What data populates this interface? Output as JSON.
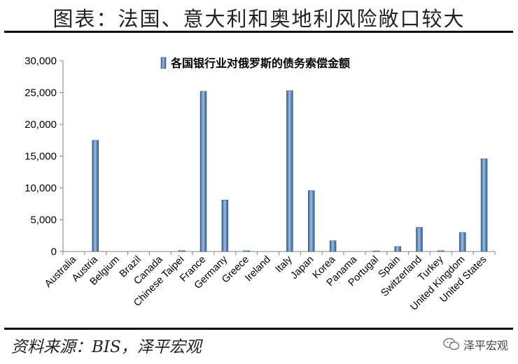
{
  "header": {
    "title": "图表：法国、意大利和奥地利风险敞口较大"
  },
  "footer": {
    "source": "资料来源：BIS，泽平宏观",
    "watermark": "泽平宏观"
  },
  "colors": {
    "bar": "#4f81bd",
    "bar_dark": "#2c5a8c",
    "bar_light": "#9dbde2",
    "axis": "#808080"
  },
  "chart_data": {
    "type": "bar",
    "title": "",
    "xlabel": "",
    "ylabel": "",
    "legend": {
      "position": "top-center",
      "label": "各国银行业对俄罗斯的债务索偿金额"
    },
    "ylim": [
      0,
      30000
    ],
    "yticks": [
      0,
      5000,
      10000,
      15000,
      20000,
      25000,
      30000
    ],
    "grid": false,
    "categories": [
      "Australia",
      "Austria",
      "Belgium",
      "Brazil",
      "Canada",
      "Chinese Taipei",
      "France",
      "Germany",
      "Greece",
      "Ireland",
      "Italy",
      "Japan",
      "Korea",
      "Panama",
      "Portugal",
      "Spain",
      "Switzerland",
      "Turkey",
      "United Kingdom",
      "United States"
    ],
    "series": [
      {
        "name": "各国银行业对俄罗斯的债务索偿金额",
        "values": [
          0,
          17500,
          0,
          0,
          0,
          150,
          25200,
          8100,
          120,
          0,
          25300,
          9600,
          1700,
          0,
          100,
          800,
          3800,
          130,
          3000,
          14600
        ]
      }
    ]
  }
}
